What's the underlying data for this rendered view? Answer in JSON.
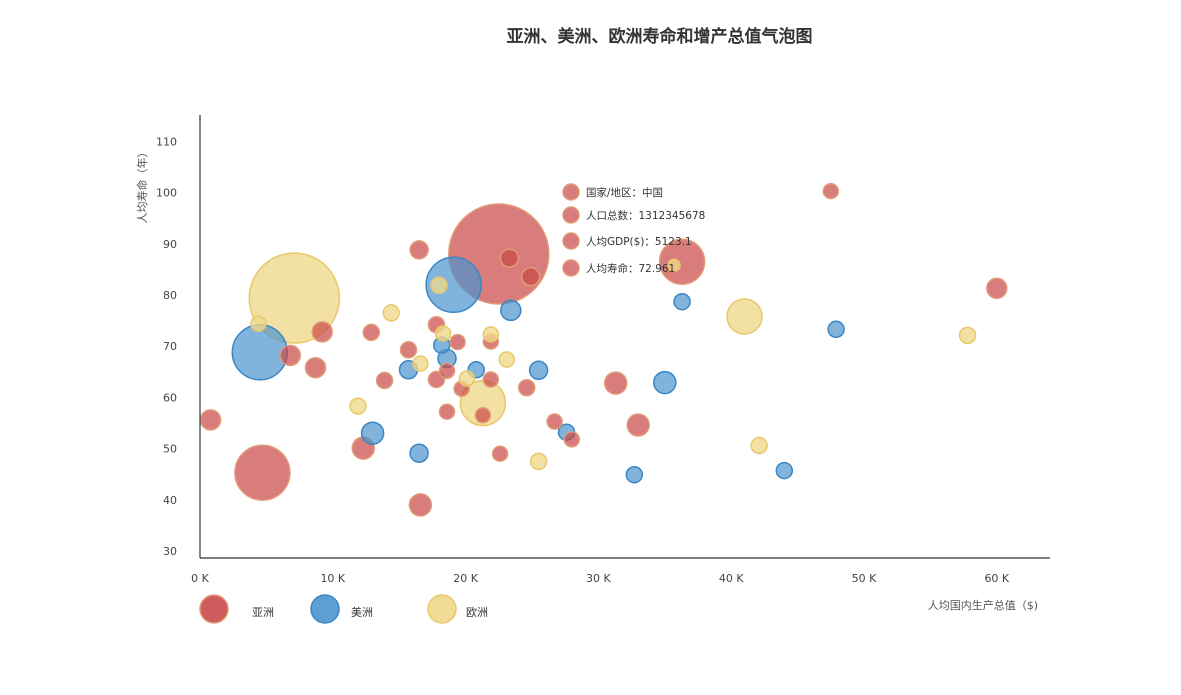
{
  "chart_data": {
    "type": "scatter",
    "title": "亚洲、美洲、欧洲寿命和增产总值气泡图",
    "xlabel": "人均国内生产总值（$)",
    "ylabel": "人均寿命（年）",
    "x_ticks": [
      "0 K",
      "10 K",
      "20 K",
      "30 K",
      "40 K",
      "50 K",
      "60 K"
    ],
    "y_ticks": [
      "30",
      "40",
      "50",
      "60",
      "70",
      "80",
      "90",
      "100",
      "110"
    ],
    "xlim": [
      0,
      64000
    ],
    "ylim": [
      28.5,
      115
    ],
    "legend_position": "bottom-left",
    "colors": {
      "asia_fill": "#c94a4a",
      "asia_stroke": "#e09b76",
      "america_fill": "#4b94cf",
      "america_stroke": "#3b86c4",
      "europe_fill": "#f0d88a",
      "europe_stroke": "#e8c86a"
    },
    "tooltip": {
      "country": "国家/地区：中国",
      "population": "人口总数：1312345678",
      "gdp": "人均GDP($)：5123.1",
      "life": "人均寿命：72.961"
    },
    "series": [
      {
        "name": "亚洲",
        "points": [
          {
            "x": 22500,
            "y": 88,
            "size": 100
          },
          {
            "x": 4700,
            "y": 45.3,
            "size": 55
          },
          {
            "x": 36300,
            "y": 86.5,
            "size": 45
          },
          {
            "x": 16500,
            "y": 88.8,
            "size": 18
          },
          {
            "x": 23300,
            "y": 87.2,
            "size": 18
          },
          {
            "x": 24900,
            "y": 83.6,
            "size": 18
          },
          {
            "x": 47500,
            "y": 100.3,
            "size": 15
          },
          {
            "x": 60000,
            "y": 81.3,
            "size": 20
          },
          {
            "x": 800,
            "y": 55.6,
            "size": 20
          },
          {
            "x": 6800,
            "y": 68.2,
            "size": 20
          },
          {
            "x": 9200,
            "y": 72.8,
            "size": 20
          },
          {
            "x": 8700,
            "y": 65.8,
            "size": 20
          },
          {
            "x": 12900,
            "y": 72.7,
            "size": 16
          },
          {
            "x": 15700,
            "y": 69.3,
            "size": 16
          },
          {
            "x": 13900,
            "y": 63.3,
            "size": 16
          },
          {
            "x": 17800,
            "y": 74.2,
            "size": 16
          },
          {
            "x": 19400,
            "y": 70.8,
            "size": 15
          },
          {
            "x": 17800,
            "y": 63.5,
            "size": 16
          },
          {
            "x": 18600,
            "y": 65.2,
            "size": 15
          },
          {
            "x": 19700,
            "y": 61.7,
            "size": 15
          },
          {
            "x": 21900,
            "y": 70.9,
            "size": 15
          },
          {
            "x": 21900,
            "y": 63.5,
            "size": 15
          },
          {
            "x": 18600,
            "y": 57.2,
            "size": 15
          },
          {
            "x": 21300,
            "y": 56.5,
            "size": 15
          },
          {
            "x": 24600,
            "y": 61.9,
            "size": 16
          },
          {
            "x": 31300,
            "y": 62.8,
            "size": 22
          },
          {
            "x": 33000,
            "y": 54.6,
            "size": 22
          },
          {
            "x": 26700,
            "y": 55.3,
            "size": 15
          },
          {
            "x": 28000,
            "y": 51.8,
            "size": 15
          },
          {
            "x": 22600,
            "y": 49,
            "size": 15
          },
          {
            "x": 12300,
            "y": 50.1,
            "size": 22
          },
          {
            "x": 16600,
            "y": 39,
            "size": 22
          }
        ]
      },
      {
        "name": "美洲",
        "points": [
          {
            "x": 4500,
            "y": 68.8,
            "size": 55
          },
          {
            "x": 19100,
            "y": 82,
            "size": 55
          },
          {
            "x": 23400,
            "y": 77,
            "size": 20
          },
          {
            "x": 36300,
            "y": 78.7,
            "size": 16
          },
          {
            "x": 47900,
            "y": 73.3,
            "size": 16
          },
          {
            "x": 15700,
            "y": 65.4,
            "size": 18
          },
          {
            "x": 18200,
            "y": 70.2,
            "size": 16
          },
          {
            "x": 18600,
            "y": 67.6,
            "size": 18
          },
          {
            "x": 20800,
            "y": 65.4,
            "size": 16
          },
          {
            "x": 25500,
            "y": 65.3,
            "size": 18
          },
          {
            "x": 35000,
            "y": 62.9,
            "size": 22
          },
          {
            "x": 13000,
            "y": 53,
            "size": 22
          },
          {
            "x": 16500,
            "y": 49.1,
            "size": 18
          },
          {
            "x": 27600,
            "y": 53.2,
            "size": 16
          },
          {
            "x": 32700,
            "y": 44.9,
            "size": 16
          },
          {
            "x": 44000,
            "y": 45.7,
            "size": 16
          }
        ]
      },
      {
        "name": "欧洲",
        "points": [
          {
            "x": 7100,
            "y": 79.4,
            "size": 90
          },
          {
            "x": 21300,
            "y": 58.9,
            "size": 45
          },
          {
            "x": 41000,
            "y": 75.8,
            "size": 35
          },
          {
            "x": 18000,
            "y": 81.9,
            "size": 16
          },
          {
            "x": 14400,
            "y": 76.5,
            "size": 16
          },
          {
            "x": 4400,
            "y": 74.4,
            "size": 15
          },
          {
            "x": 18300,
            "y": 72.5,
            "size": 15
          },
          {
            "x": 21900,
            "y": 72.3,
            "size": 15
          },
          {
            "x": 16600,
            "y": 66.6,
            "size": 15
          },
          {
            "x": 23100,
            "y": 67.4,
            "size": 15
          },
          {
            "x": 20100,
            "y": 63.7,
            "size": 15
          },
          {
            "x": 11900,
            "y": 58.3,
            "size": 16
          },
          {
            "x": 57800,
            "y": 72.1,
            "size": 16
          },
          {
            "x": 42100,
            "y": 50.6,
            "size": 16
          },
          {
            "x": 25500,
            "y": 47.5,
            "size": 16
          },
          {
            "x": 35700,
            "y": 85.8,
            "size": 12
          }
        ]
      }
    ]
  }
}
